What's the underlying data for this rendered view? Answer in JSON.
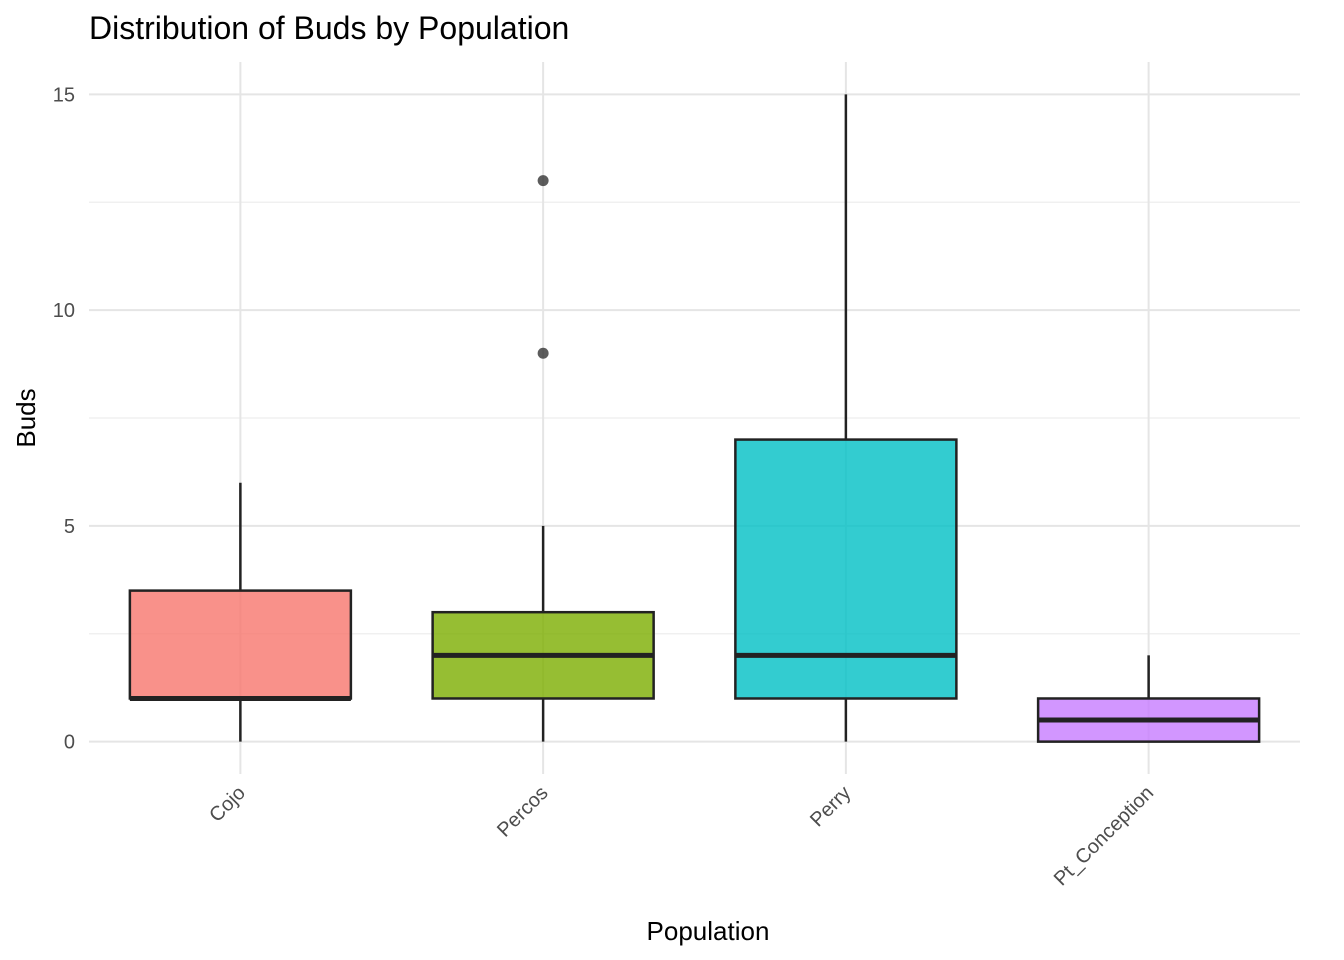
{
  "chart_data": {
    "type": "box",
    "title": "Distribution of Buds by Population",
    "xlabel": "Population",
    "ylabel": "Buds",
    "ylim": [
      -0.75,
      15.75
    ],
    "y_ticks": [
      "0",
      "5",
      "10",
      "15"
    ],
    "categories": [
      "Cojo",
      "Percos",
      "Perry",
      "Pt_Conception"
    ],
    "boxes": [
      {
        "category": "Cojo",
        "lower_whisker": 0,
        "q1": 1,
        "median": 1,
        "q3": 3.5,
        "upper_whisker": 6,
        "outliers": [],
        "color": "#F8766D"
      },
      {
        "category": "Percos",
        "lower_whisker": 0,
        "q1": 1,
        "median": 2,
        "q3": 3,
        "upper_whisker": 5,
        "outliers": [
          9,
          13
        ],
        "color": "#7CAE00"
      },
      {
        "category": "Perry",
        "lower_whisker": 0,
        "q1": 1,
        "median": 2,
        "q3": 7,
        "upper_whisker": 15,
        "outliers": [],
        "color": "#00BFC4"
      },
      {
        "category": "Pt_Conception",
        "lower_whisker": 0,
        "q1": 0,
        "median": 0.5,
        "q3": 1,
        "upper_whisker": 2,
        "outliers": [],
        "color": "#C77CFF"
      }
    ],
    "grid": true,
    "legend": "none"
  }
}
